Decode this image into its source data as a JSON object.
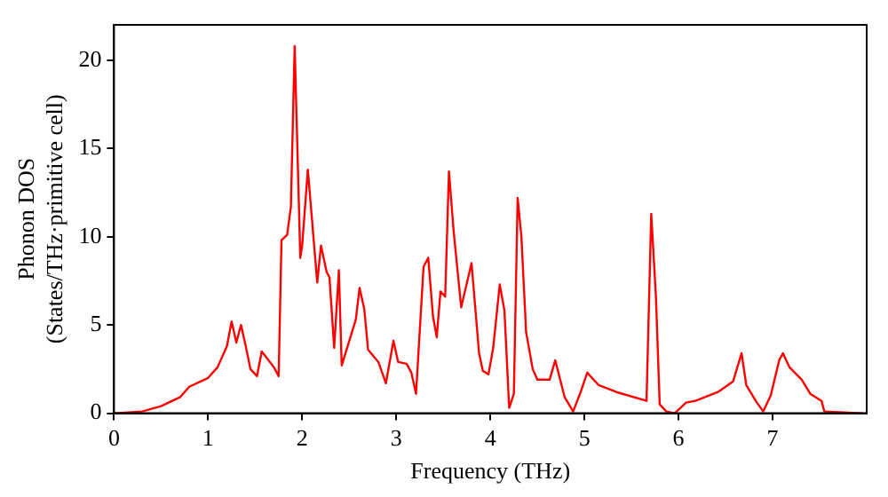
{
  "chart_data": {
    "type": "line",
    "xlabel": "Frequency (THz)",
    "ylabel": "Phonon DOS\n(States/THz·primitive cell)",
    "xlim": [
      0,
      8
    ],
    "ylim": [
      0,
      22
    ],
    "xticks": [
      0,
      1,
      2,
      3,
      4,
      5,
      6,
      7
    ],
    "yticks": [
      0,
      5,
      10,
      15,
      20
    ],
    "grid": false,
    "legend": false,
    "marker": "none",
    "line_style": "solid",
    "series": [
      {
        "color": "#ff0000",
        "x": [
          0,
          0.3,
          0.5,
          0.7,
          0.8,
          1.0,
          1.1,
          1.2,
          1.25,
          1.3,
          1.35,
          1.4,
          1.45,
          1.52,
          1.57,
          1.7,
          1.75,
          1.78,
          1.84,
          1.88,
          1.92,
          1.98,
          2.0,
          2.06,
          2.16,
          2.2,
          2.26,
          2.29,
          2.34,
          2.39,
          2.42,
          2.57,
          2.61,
          2.66,
          2.7,
          2.81,
          2.89,
          2.97,
          3.02,
          3.11,
          3.16,
          3.21,
          3.29,
          3.34,
          3.39,
          3.43,
          3.47,
          3.52,
          3.56,
          3.61,
          3.69,
          3.8,
          3.88,
          3.92,
          3.98,
          4.03,
          4.1,
          4.15,
          4.2,
          4.25,
          4.29,
          4.33,
          4.38,
          4.45,
          4.5,
          4.63,
          4.69,
          4.79,
          4.88,
          4.96,
          5.03,
          5.08,
          5.15,
          5.34,
          5.66,
          5.71,
          5.76,
          5.8,
          5.87,
          5.96,
          6.08,
          6.18,
          6.42,
          6.58,
          6.67,
          6.72,
          6.82,
          6.9,
          6.98,
          7.07,
          7.11,
          7.18,
          7.31,
          7.4,
          7.52,
          7.55,
          7.96
        ],
        "values": [
          0,
          0.1,
          0.4,
          0.9,
          1.5,
          2.0,
          2.6,
          3.8,
          5.2,
          4.0,
          5.0,
          3.8,
          2.5,
          2.1,
          3.5,
          2.6,
          2.1,
          9.8,
          10.1,
          11.7,
          20.8,
          8.8,
          9.5,
          13.8,
          7.4,
          9.5,
          8.0,
          7.7,
          3.7,
          8.1,
          2.7,
          5.3,
          7.1,
          5.9,
          3.6,
          2.9,
          1.7,
          4.1,
          2.9,
          2.8,
          2.3,
          1.1,
          8.3,
          8.8,
          5.5,
          4.3,
          6.9,
          6.6,
          13.7,
          10.3,
          6.0,
          8.5,
          3.4,
          2.4,
          2.2,
          3.7,
          7.3,
          5.8,
          0.3,
          1.1,
          12.2,
          10,
          4.6,
          2.5,
          1.9,
          1.9,
          3.0,
          0.9,
          0.1,
          1.2,
          2.3,
          2.0,
          1.6,
          1.2,
          0.7,
          11.3,
          6.6,
          0.5,
          0.1,
          0,
          0.6,
          0.7,
          1.2,
          1.8,
          3.4,
          1.6,
          0.7,
          0.1,
          1.0,
          3.0,
          3.4,
          2.6,
          1.9,
          1.1,
          0.7,
          0.1,
          0
        ]
      }
    ]
  }
}
